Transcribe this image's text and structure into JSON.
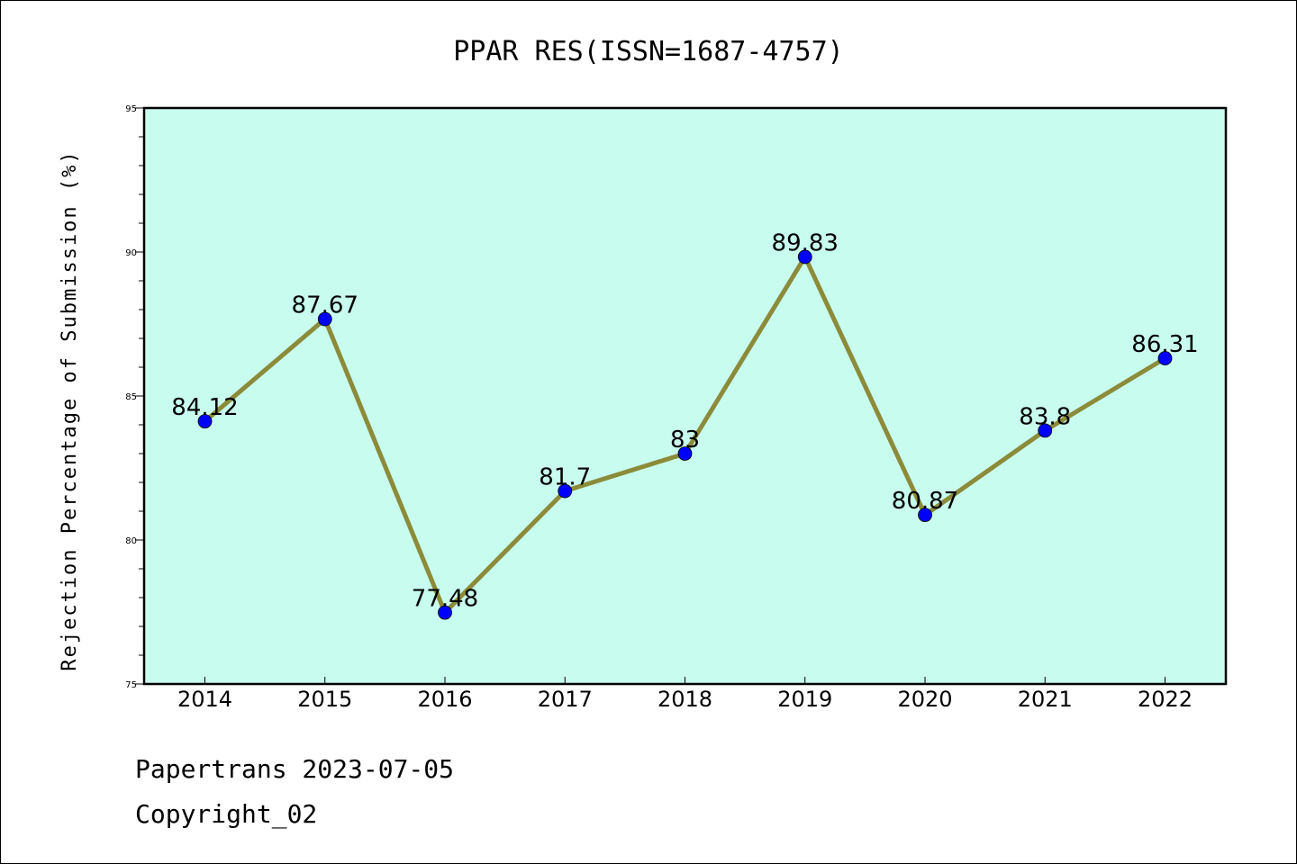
{
  "chart_data": {
    "type": "line",
    "title": "PPAR RES(ISSN=1687-4757)",
    "ylabel": "Rejection Percentage of Submission (%)",
    "xlabel": "",
    "categories": [
      "2014",
      "2015",
      "2016",
      "2017",
      "2018",
      "2019",
      "2020",
      "2021",
      "2022"
    ],
    "series": [
      {
        "values": [
          84.12,
          87.67,
          77.48,
          81.7,
          83,
          89.83,
          80.87,
          83.8,
          86.31
        ],
        "labels": [
          "84.12",
          "87.67",
          "77.48",
          "81.7",
          "83",
          "89.83",
          "80.87",
          "83.8",
          "86.31"
        ]
      }
    ],
    "ylim": [
      75,
      95
    ],
    "yticks": [
      75,
      80,
      85,
      90,
      95
    ],
    "grid": false,
    "colors": {
      "plot_background": "#c8fcee",
      "line": "#8b8b3a",
      "marker": "#0000ff"
    }
  },
  "footer": {
    "line1": "Papertrans 2023-07-05",
    "line2": "Copyright_02"
  }
}
